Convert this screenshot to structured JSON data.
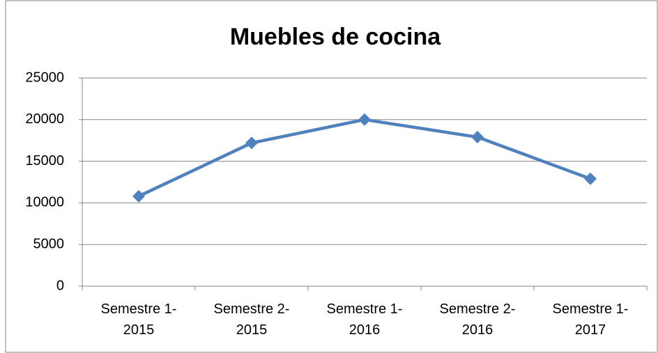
{
  "chart_data": {
    "type": "line",
    "title": "Muebles de cocina",
    "categories": [
      "Semestre 1-2015",
      "Semestre 2-2015",
      "Semestre 1-2016",
      "Semestre 2-2016",
      "Semestre 1-2017"
    ],
    "series": [
      {
        "name": "Muebles de cocina",
        "color": "#4f81bd",
        "values": [
          10800,
          17200,
          20000,
          17900,
          12900
        ]
      }
    ],
    "ylim": [
      0,
      25000
    ],
    "yticks": [
      0,
      5000,
      10000,
      15000,
      20000,
      25000
    ],
    "grid": true
  }
}
